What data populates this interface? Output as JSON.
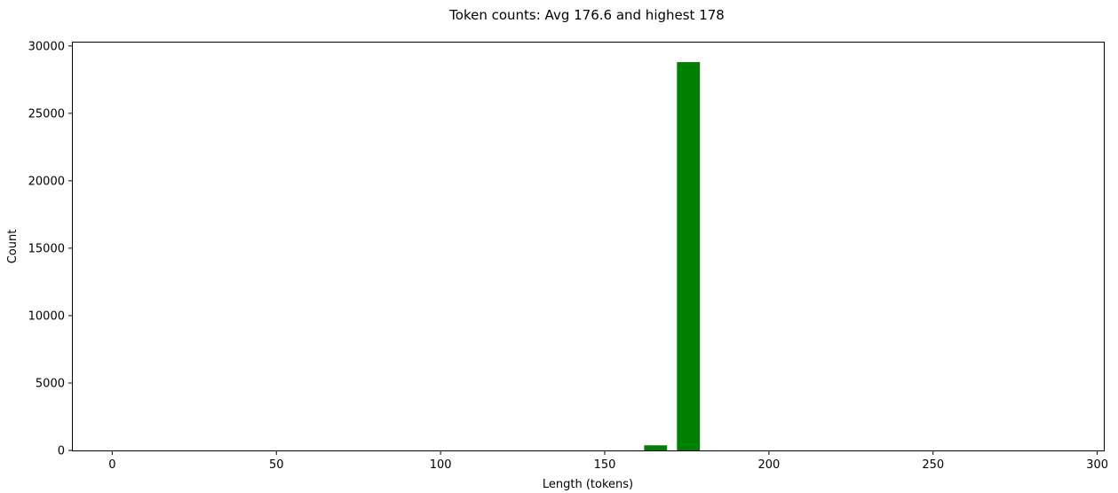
{
  "chart_data": {
    "type": "bar",
    "title": "Token counts: Avg 176.6 and highest 178",
    "xlabel": "Length (tokens)",
    "ylabel": "Count",
    "xlim": [
      -12,
      302
    ],
    "ylim": [
      0,
      30250
    ],
    "xticks": [
      0,
      50,
      100,
      150,
      200,
      250,
      300
    ],
    "yticks": [
      0,
      5000,
      10000,
      15000,
      20000,
      25000,
      30000
    ],
    "bar_color": "#008000",
    "bars": [
      {
        "x_start": 162,
        "x_end": 169,
        "value": 380
      },
      {
        "x_start": 172,
        "x_end": 179,
        "value": 28800
      }
    ],
    "grid": false,
    "legend": "none"
  }
}
